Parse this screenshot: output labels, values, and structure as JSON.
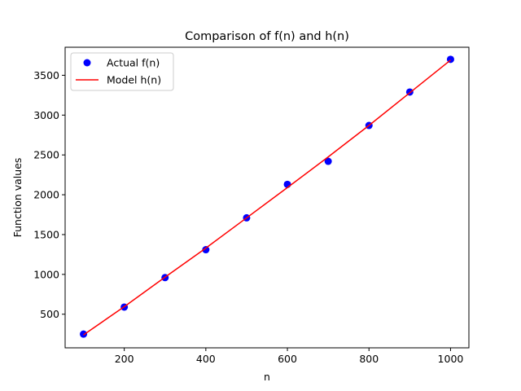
{
  "chart_data": {
    "type": "scatter",
    "title": "Comparison of f(n) and h(n)",
    "xlabel": "n",
    "ylabel": "Function values",
    "xlim": [
      55,
      1045
    ],
    "ylim": [
      78,
      3852
    ],
    "xticks": [
      200,
      400,
      600,
      800,
      1000
    ],
    "yticks": [
      500,
      1000,
      1500,
      2000,
      2500,
      3000,
      3500
    ],
    "grid": false,
    "legend_position": "top-left",
    "series": [
      {
        "name": "Actual f(n)",
        "kind": "points",
        "color": "#0000ff",
        "x": [
          100,
          200,
          300,
          400,
          500,
          600,
          700,
          800,
          900,
          1000
        ],
        "y": [
          250,
          590,
          960,
          1310,
          1710,
          2130,
          2420,
          2870,
          3290,
          3700
        ]
      },
      {
        "name": "Model h(n)",
        "kind": "line",
        "color": "#ff0000",
        "x": [
          100,
          200,
          300,
          400,
          500,
          600,
          700,
          800,
          900,
          1000
        ],
        "y": [
          240,
          595,
          965,
          1330,
          1710,
          2090,
          2475,
          2870,
          3280,
          3690
        ]
      }
    ]
  }
}
